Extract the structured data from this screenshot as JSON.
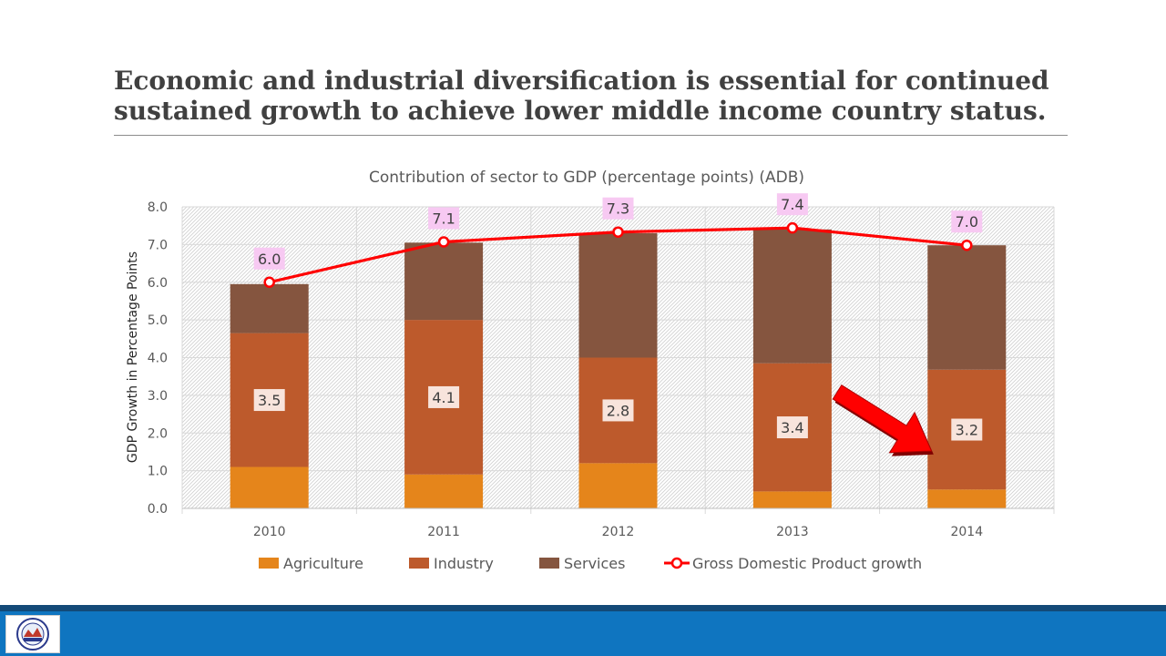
{
  "slide": {
    "title": "Economic and industrial diversification is essential for continued sustained growth to achieve lower middle income country status."
  },
  "chart_data": {
    "type": "bar",
    "stacked": true,
    "title": "Contribution of sector to GDP (percentage points) (ADB)",
    "xlabel": "",
    "ylabel": "GDP Growth in Percentage Points",
    "ylim": [
      0,
      8
    ],
    "yticks": [
      "0.0",
      "1.0",
      "2.0",
      "3.0",
      "4.0",
      "5.0",
      "6.0",
      "7.0",
      "8.0"
    ],
    "categories": [
      "2010",
      "2011",
      "2012",
      "2013",
      "2014"
    ],
    "series": [
      {
        "name": "Agriculture",
        "type": "bar",
        "color": "#e5851b",
        "values": [
          1.1,
          0.9,
          1.2,
          0.45,
          0.5
        ]
      },
      {
        "name": "Industry",
        "type": "bar",
        "color": "#bd5a2c",
        "values": [
          3.55,
          4.1,
          2.8,
          3.4,
          3.18
        ],
        "labels": [
          "3.5",
          "4.1",
          "2.8",
          "3.4",
          "3.2"
        ]
      },
      {
        "name": "Services",
        "type": "bar",
        "color": "#85553f",
        "values": [
          1.3,
          2.05,
          3.3,
          3.55,
          3.3
        ]
      },
      {
        "name": "Gross Domestic Product growth",
        "type": "line",
        "color": "#ff0000",
        "values": [
          6.0,
          7.07,
          7.33,
          7.44,
          6.98
        ],
        "labels": [
          "6.0",
          "7.1",
          "7.3",
          "7.4",
          "7.0"
        ]
      }
    ],
    "grid": true,
    "legend": "bottom",
    "annotation": {
      "type": "arrow",
      "color": "#ff0000",
      "direction": "down-right"
    }
  }
}
